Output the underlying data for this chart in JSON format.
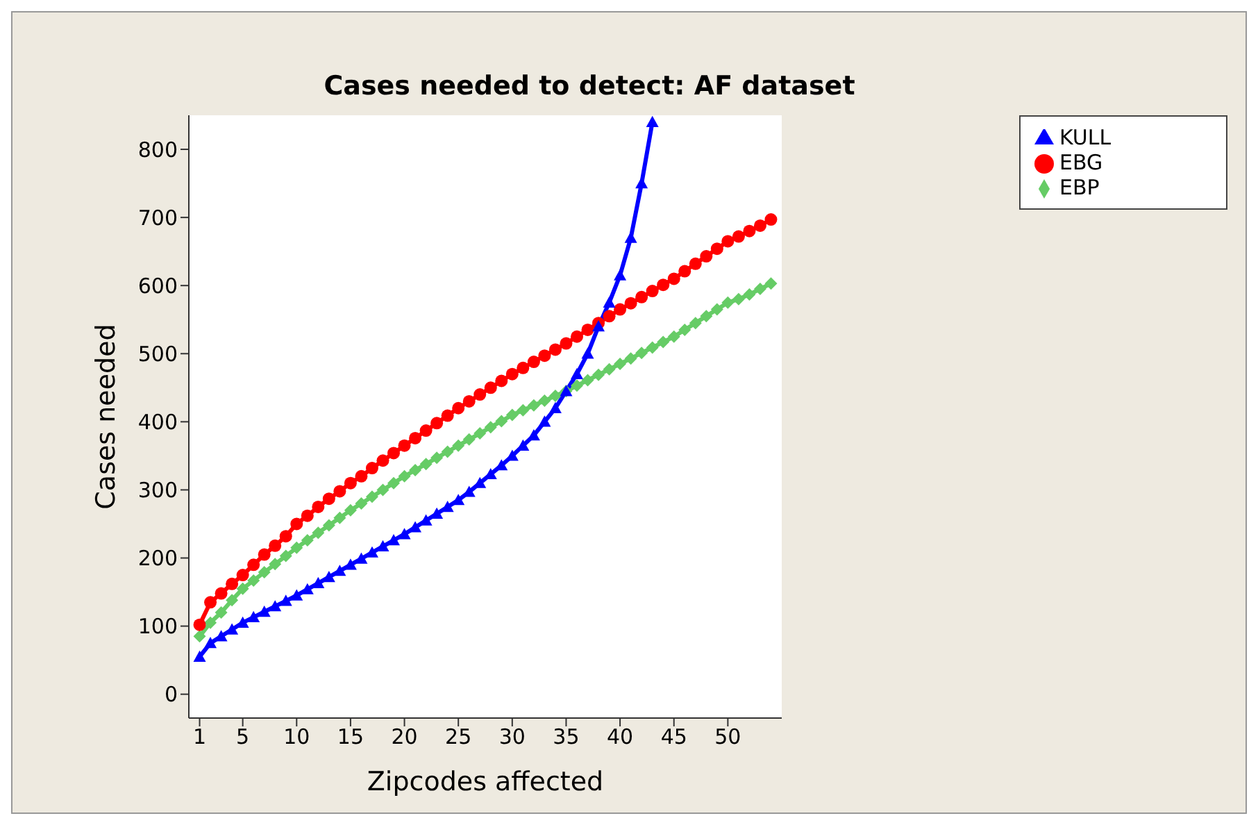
{
  "chart_data": {
    "type": "line",
    "title": "Cases needed to detect: AF dataset",
    "xlabel": "Zipcodes affected",
    "ylabel": "Cases needed",
    "x": [
      1,
      2,
      3,
      4,
      5,
      6,
      7,
      8,
      9,
      10,
      11,
      12,
      13,
      14,
      15,
      16,
      17,
      18,
      19,
      20,
      21,
      22,
      23,
      24,
      25,
      26,
      27,
      28,
      29,
      30,
      31,
      32,
      33,
      34,
      35,
      36,
      37,
      38,
      39,
      40,
      41,
      42,
      43,
      44,
      45,
      46,
      47,
      48,
      49,
      50,
      51,
      52,
      53,
      54
    ],
    "series": [
      {
        "name": "KULL",
        "color": "#0000ff",
        "marker": "triangle",
        "values": [
          55,
          75,
          85,
          95,
          105,
          113,
          121,
          129,
          137,
          145,
          154,
          163,
          172,
          181,
          190,
          199,
          208,
          217,
          226,
          235,
          245,
          255,
          265,
          275,
          285,
          297,
          310,
          323,
          336,
          350,
          365,
          380,
          400,
          420,
          445,
          470,
          500,
          540,
          575,
          615,
          670,
          750,
          840,
          null,
          null,
          null,
          null,
          null,
          null,
          null,
          null,
          null,
          null,
          null
        ]
      },
      {
        "name": "EBG",
        "color": "#ff0000",
        "marker": "circle",
        "values": [
          102,
          135,
          148,
          162,
          175,
          190,
          205,
          218,
          232,
          250,
          262,
          275,
          287,
          298,
          310,
          320,
          332,
          343,
          354,
          365,
          376,
          387,
          398,
          409,
          420,
          430,
          440,
          450,
          460,
          470,
          479,
          488,
          497,
          506,
          515,
          525,
          535,
          545,
          555,
          565,
          574,
          583,
          592,
          601,
          610,
          621,
          632,
          643,
          654,
          665,
          672,
          680,
          688,
          697
        ]
      },
      {
        "name": "EBP",
        "color": "#66cc66",
        "marker": "diamond",
        "values": [
          85,
          105,
          120,
          138,
          155,
          167,
          179,
          191,
          203,
          215,
          226,
          237,
          248,
          259,
          270,
          280,
          290,
          300,
          310,
          320,
          329,
          338,
          347,
          356,
          365,
          374,
          383,
          392,
          401,
          410,
          417,
          424,
          431,
          438,
          445,
          453,
          461,
          469,
          477,
          485,
          493,
          501,
          509,
          517,
          525,
          535,
          545,
          555,
          565,
          575,
          580,
          587,
          595,
          603
        ]
      }
    ],
    "xlim": [
      0,
      55
    ],
    "xticks": [
      1,
      5,
      10,
      15,
      20,
      25,
      30,
      35,
      40,
      45,
      50
    ],
    "ylim": [
      -35,
      850
    ],
    "yticks": [
      0,
      100,
      200,
      300,
      400,
      500,
      600,
      700,
      800
    ],
    "grid": false,
    "legend": "right",
    "line_style": "solid"
  }
}
